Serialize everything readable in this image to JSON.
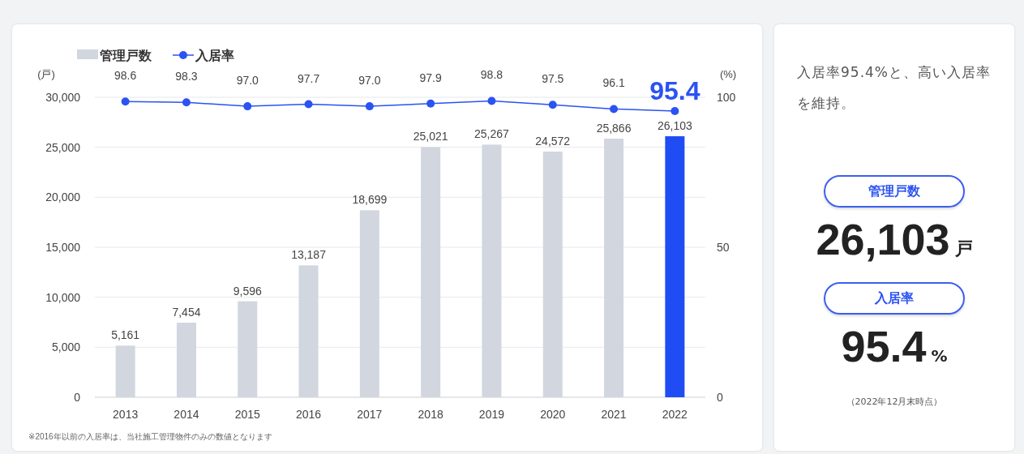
{
  "chart_data": [
    {
      "type": "bar",
      "categories": [
        "2013",
        "2014",
        "2015",
        "2016",
        "2017",
        "2018",
        "2019",
        "2020",
        "2021",
        "2022"
      ],
      "ylabel": "(戸)",
      "y2label": "(%)",
      "ylim": [
        0,
        30000
      ],
      "yticks": [
        {
          "value": 0,
          "label": "0"
        },
        {
          "value": 5000,
          "label": "5,000"
        },
        {
          "value": 10000,
          "label": "10,000"
        },
        {
          "value": 15000,
          "label": "15,000"
        },
        {
          "value": 20000,
          "label": "20,000"
        },
        {
          "value": 25000,
          "label": "25,000"
        },
        {
          "value": 30000,
          "label": "30,000"
        }
      ],
      "y2lim": [
        0,
        100
      ],
      "y2ticks": [
        0,
        50,
        100
      ],
      "grid": "y",
      "legend": "top left",
      "marker": "circle",
      "series": [
        {
          "name": "管理戸数",
          "type": "bar",
          "colors": [
            "#d1d6df",
            "#d1d6df",
            "#d1d6df",
            "#d1d6df",
            "#d1d6df",
            "#d1d6df",
            "#d1d6df",
            "#d1d6df",
            "#d1d6df",
            "#1f4cf3"
          ],
          "values": [
            5161,
            7454,
            9596,
            13187,
            18699,
            25021,
            25267,
            24572,
            25866,
            26103
          ],
          "value_labels": [
            "5,161",
            "7,454",
            "9,596",
            "13,187",
            "18,699",
            "25,021",
            "25,267",
            "24,572",
            "25,866",
            "26,103"
          ]
        },
        {
          "name": "入居率",
          "type": "line",
          "axis": "y2",
          "color": "#2b52f2",
          "values": [
            98.6,
            98.3,
            97.0,
            97.7,
            97.0,
            97.9,
            98.8,
            97.5,
            96.1,
            95.4
          ],
          "value_labels": [
            "98.6",
            "98.3",
            "97.0",
            "97.7",
            "97.0",
            "97.9",
            "98.8",
            "97.5",
            "96.1",
            "95.4"
          ]
        }
      ],
      "annotations": [
        "※2016年以前の入居率は、当社施工管理物件のみの数値となります"
      ]
    },
    {
      "type": "other",
      "annotations": [
        "入居率95.4%と、高い入居率を維持。",
        "管理戸数",
        "26,103",
        "戸",
        "入居率",
        "95.4",
        "%",
        "（2022年12月末時点）"
      ]
    }
  ]
}
